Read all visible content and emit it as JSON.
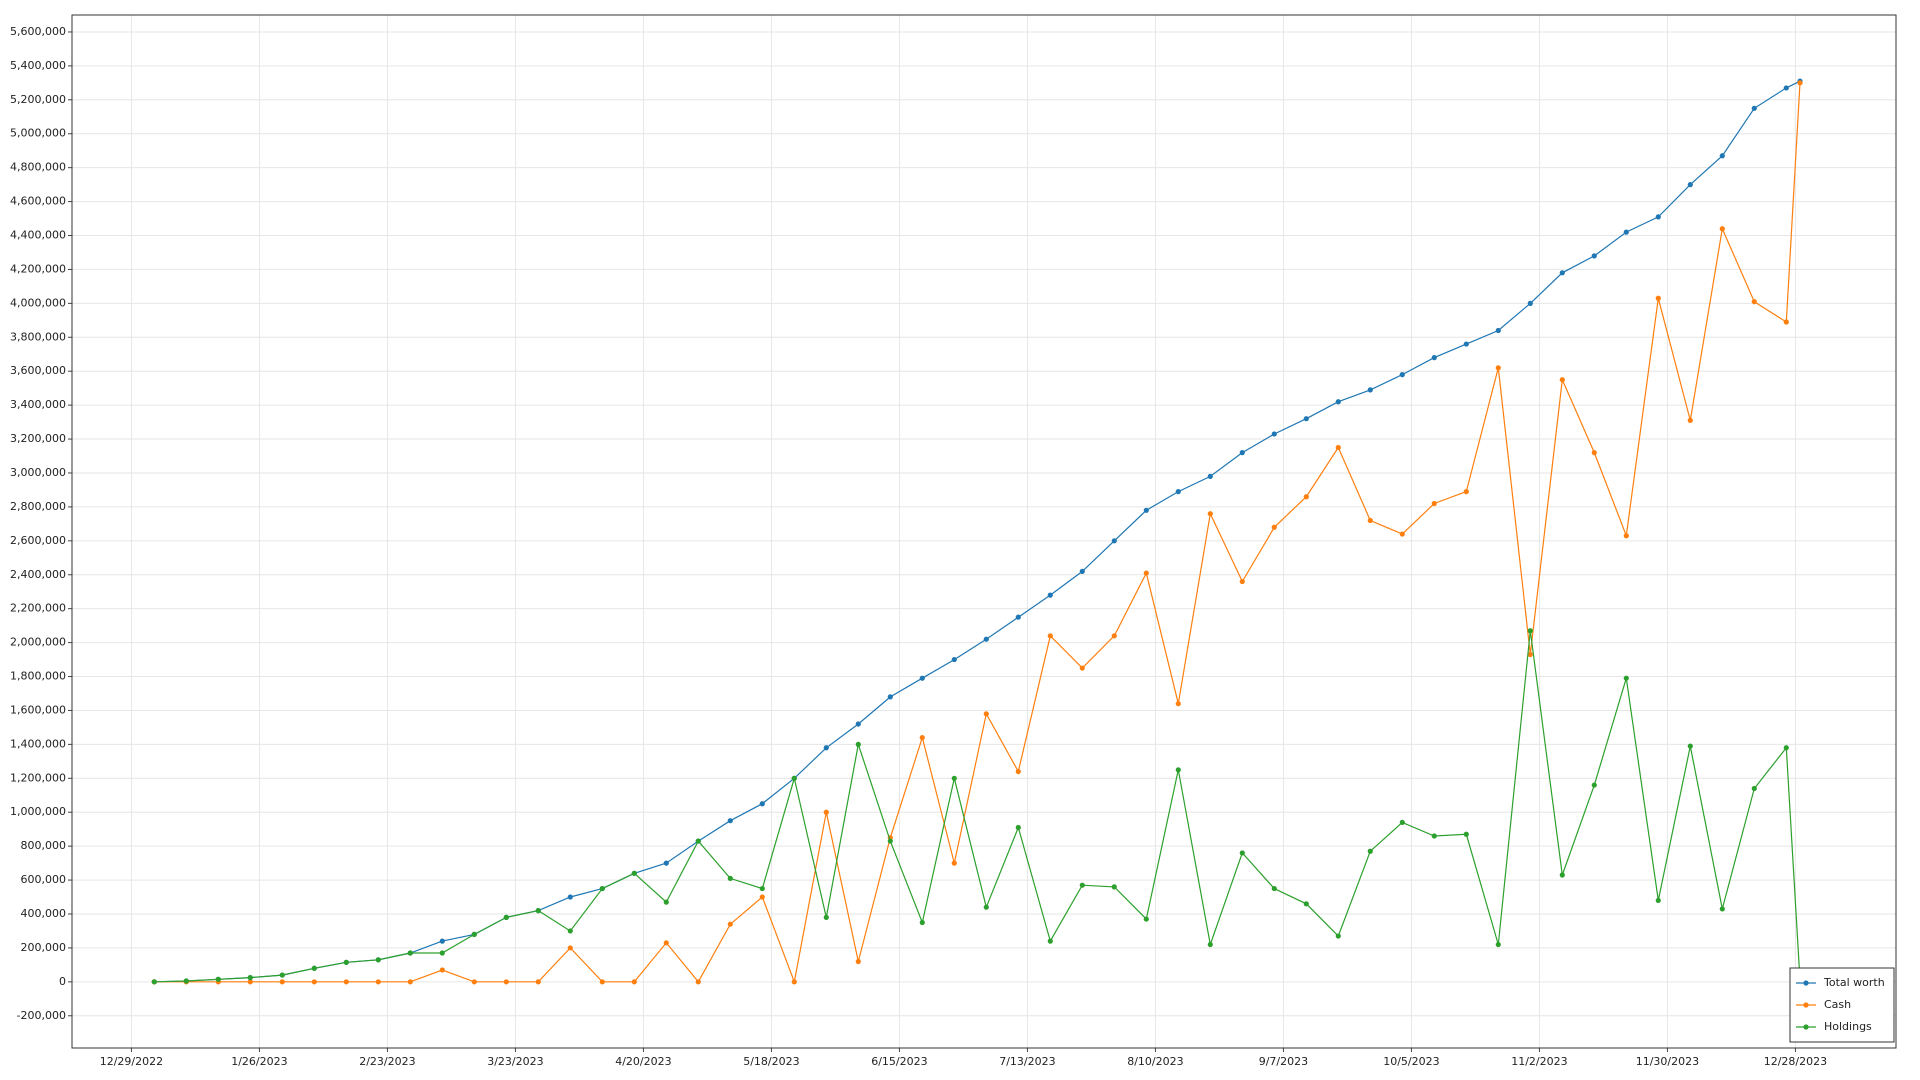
{
  "chart_data": {
    "type": "line",
    "x": [
      "2023-01-03",
      "2023-01-10",
      "2023-01-17",
      "2023-01-24",
      "2023-01-31",
      "2023-02-07",
      "2023-02-14",
      "2023-02-21",
      "2023-02-28",
      "2023-03-07",
      "2023-03-14",
      "2023-03-21",
      "2023-03-28",
      "2023-04-04",
      "2023-04-11",
      "2023-04-18",
      "2023-04-25",
      "2023-05-02",
      "2023-05-09",
      "2023-05-16",
      "2023-05-23",
      "2023-05-30",
      "2023-06-06",
      "2023-06-13",
      "2023-06-20",
      "2023-06-27",
      "2023-07-04",
      "2023-07-11",
      "2023-07-18",
      "2023-07-25",
      "2023-08-01",
      "2023-08-08",
      "2023-08-15",
      "2023-08-22",
      "2023-08-29",
      "2023-09-05",
      "2023-09-12",
      "2023-09-19",
      "2023-09-26",
      "2023-10-03",
      "2023-10-10",
      "2023-10-17",
      "2023-10-24",
      "2023-10-31",
      "2023-11-07",
      "2023-11-14",
      "2023-11-21",
      "2023-11-28",
      "2023-12-05",
      "2023-12-12",
      "2023-12-19",
      "2023-12-26",
      "2023-12-29"
    ],
    "series": [
      {
        "name": "Total worth",
        "color": "#1f77b4",
        "values": [
          0,
          5000,
          15000,
          25000,
          40000,
          80000,
          115000,
          130000,
          170000,
          240000,
          280000,
          380000,
          420000,
          500000,
          550000,
          640000,
          700000,
          830000,
          950000,
          1050000,
          1200000,
          1380000,
          1520000,
          1680000,
          1790000,
          1900000,
          2020000,
          2150000,
          2280000,
          2420000,
          2600000,
          2780000,
          2890000,
          2980000,
          3120000,
          3230000,
          3320000,
          3420000,
          3490000,
          3580000,
          3680000,
          3760000,
          3840000,
          4000000,
          4180000,
          4280000,
          4420000,
          4510000,
          4700000,
          4870000,
          5150000,
          5270000,
          5310000
        ]
      },
      {
        "name": "Cash",
        "color": "#ff7f0e",
        "values": [
          0,
          0,
          0,
          0,
          0,
          0,
          0,
          0,
          0,
          70000,
          0,
          0,
          0,
          200000,
          0,
          0,
          230000,
          0,
          340000,
          500000,
          0,
          1000000,
          120000,
          850000,
          1440000,
          700000,
          1580000,
          1240000,
          2040000,
          1850000,
          2040000,
          2410000,
          1640000,
          2760000,
          2360000,
          2680000,
          2860000,
          3150000,
          2720000,
          2640000,
          2820000,
          2890000,
          3620000,
          1930000,
          3550000,
          3120000,
          2630000,
          4030000,
          3310000,
          4440000,
          4010000,
          3890000,
          5300000
        ]
      },
      {
        "name": "Holdings",
        "color": "#2ca02c",
        "values": [
          0,
          5000,
          15000,
          25000,
          40000,
          80000,
          115000,
          130000,
          170000,
          170000,
          280000,
          380000,
          420000,
          300000,
          550000,
          640000,
          470000,
          830000,
          610000,
          550000,
          1200000,
          380000,
          1400000,
          830000,
          350000,
          1200000,
          440000,
          910000,
          240000,
          570000,
          560000,
          370000,
          1250000,
          220000,
          760000,
          550000,
          460000,
          270000,
          770000,
          940000,
          860000,
          870000,
          220000,
          2070000,
          630000,
          1160000,
          1790000,
          480000,
          1390000,
          430000,
          1140000,
          1380000,
          10000
        ]
      }
    ],
    "xlim": [
      "2022-12-16",
      "2024-01-19"
    ],
    "xticks": [
      {
        "value": "2022-12-29",
        "label": "12/29/2022"
      },
      {
        "value": "2023-01-26",
        "label": "1/26/2023"
      },
      {
        "value": "2023-02-23",
        "label": "2/23/2023"
      },
      {
        "value": "2023-03-23",
        "label": "3/23/2023"
      },
      {
        "value": "2023-04-20",
        "label": "4/20/2023"
      },
      {
        "value": "2023-05-18",
        "label": "5/18/2023"
      },
      {
        "value": "2023-06-15",
        "label": "6/15/2023"
      },
      {
        "value": "2023-07-13",
        "label": "7/13/2023"
      },
      {
        "value": "2023-08-10",
        "label": "8/10/2023"
      },
      {
        "value": "2023-09-07",
        "label": "9/7/2023"
      },
      {
        "value": "2023-10-05",
        "label": "10/5/2023"
      },
      {
        "value": "2023-11-02",
        "label": "11/2/2023"
      },
      {
        "value": "2023-11-30",
        "label": "11/30/2023"
      },
      {
        "value": "2023-12-28",
        "label": "12/28/2023"
      }
    ],
    "ylim": [
      -390000,
      5700000
    ],
    "yticks": [
      {
        "value": -200000,
        "label": "-200,000"
      },
      0,
      {
        "value": 200000,
        "label": "200,000"
      },
      {
        "value": 400000,
        "label": "400,000"
      },
      {
        "value": 600000,
        "label": "600,000"
      },
      {
        "value": 800000,
        "label": "800,000"
      },
      {
        "value": 1000000,
        "label": "1,000,000"
      },
      {
        "value": 1200000,
        "label": "1,200,000"
      },
      {
        "value": 1400000,
        "label": "1,400,000"
      },
      {
        "value": 1600000,
        "label": "1,600,000"
      },
      {
        "value": 1800000,
        "label": "1,800,000"
      },
      {
        "value": 2000000,
        "label": "2,000,000"
      },
      {
        "value": 2200000,
        "label": "2,200,000"
      },
      {
        "value": 2400000,
        "label": "2,400,000"
      },
      {
        "value": 2600000,
        "label": "2,600,000"
      },
      {
        "value": 2800000,
        "label": "2,800,000"
      },
      {
        "value": 3000000,
        "label": "3,000,000"
      },
      {
        "value": 3200000,
        "label": "3,200,000"
      },
      {
        "value": 3400000,
        "label": "3,400,000"
      },
      {
        "value": 3600000,
        "label": "3,600,000"
      },
      {
        "value": 3800000,
        "label": "3,800,000"
      },
      {
        "value": 4000000,
        "label": "4,000,000"
      },
      {
        "value": 4200000,
        "label": "4,200,000"
      },
      {
        "value": 4400000,
        "label": "4,400,000"
      },
      {
        "value": 4600000,
        "label": "4,600,000"
      },
      {
        "value": 4800000,
        "label": "4,800,000"
      },
      {
        "value": 5000000,
        "label": "5,000,000"
      },
      {
        "value": 5200000,
        "label": "5,200,000"
      },
      {
        "value": 5400000,
        "label": "5,400,000"
      },
      {
        "value": 5600000,
        "label": "5,600,000"
      }
    ],
    "grid": true,
    "legend": "lower right"
  }
}
